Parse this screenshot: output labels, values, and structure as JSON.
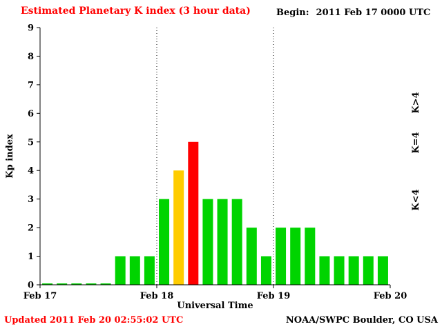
{
  "title": "Estimated Planetary K index (3 hour data)",
  "begin_label": "Begin:",
  "begin_value": "2011 Feb 17 0000 UTC",
  "footer": {
    "updated": "Updated 2011 Feb 20 02:55:02 UTC",
    "source": "NOAA/SWPC Boulder, CO USA"
  },
  "colors": {
    "title": "#ff0000",
    "updated": "#ff0000",
    "axis": "#000000",
    "kp_low_green": "#00d400",
    "kp_mid_yellow": "#ffcc00",
    "kp_high_red": "#ff0000"
  },
  "legend": [
    {
      "label": "K>4",
      "color": "#ff0000"
    },
    {
      "label": "K=4",
      "color": "#ffcc00"
    },
    {
      "label": "K<4",
      "color": "#00d400"
    }
  ],
  "chart_data": {
    "type": "bar",
    "title": "Estimated Planetary K index (3 hour data)",
    "xlabel": "Universal Time",
    "ylabel": "Kp index",
    "ylim": [
      0,
      9
    ],
    "yticks": [
      0,
      1,
      2,
      3,
      4,
      5,
      6,
      7,
      8,
      9
    ],
    "xticklabels": [
      "Feb 17",
      "Feb 18",
      "Feb 19",
      "Feb 20"
    ],
    "bin_hours": 3,
    "values": [
      0,
      0,
      0,
      0,
      0,
      1,
      1,
      1,
      3,
      4,
      5,
      3,
      3,
      3,
      2,
      1,
      2,
      2,
      2,
      1,
      1,
      1,
      1,
      1
    ],
    "day_boundaries": [
      8,
      16
    ],
    "color_rule": {
      "lt4": "#00d400",
      "eq4": "#ffcc00",
      "gt4": "#ff0000"
    },
    "grid": false,
    "legend_position": "right"
  }
}
